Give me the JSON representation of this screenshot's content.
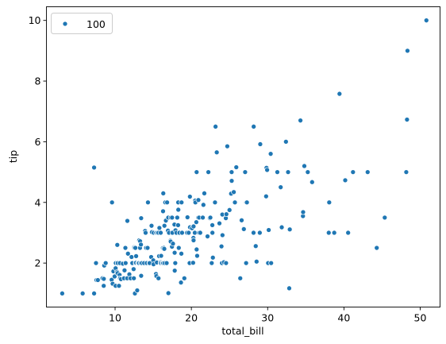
{
  "chart_data": {
    "type": "scatter",
    "xlabel": "total_bill",
    "ylabel": "tip",
    "xlim": [
      1.0,
      52.6
    ],
    "ylim": [
      0.55,
      10.45
    ],
    "xticks": [
      10,
      20,
      30,
      40,
      50
    ],
    "yticks": [
      2,
      4,
      6,
      8,
      10
    ],
    "grid": false,
    "legend_position": "top-left",
    "series": [
      {
        "name": "100",
        "color": "#1f77b4",
        "points": [
          [
            3.07,
            1.0
          ],
          [
            5.75,
            1.0
          ],
          [
            7.25,
            1.0
          ],
          [
            7.25,
            5.15
          ],
          [
            7.5,
            2.0
          ],
          [
            7.56,
            1.44
          ],
          [
            7.74,
            1.44
          ],
          [
            8.35,
            1.5
          ],
          [
            8.51,
            1.25
          ],
          [
            8.52,
            1.48
          ],
          [
            8.58,
            1.92
          ],
          [
            8.77,
            2.0
          ],
          [
            9.55,
            1.45
          ],
          [
            9.6,
            4.0
          ],
          [
            9.68,
            1.32
          ],
          [
            9.78,
            1.73
          ],
          [
            9.94,
            1.56
          ],
          [
            10.07,
            1.25
          ],
          [
            10.07,
            1.83
          ],
          [
            10.09,
            2.0
          ],
          [
            10.27,
            1.71
          ],
          [
            10.29,
            2.6
          ],
          [
            10.33,
            1.67
          ],
          [
            10.33,
            2.0
          ],
          [
            10.34,
            2.0
          ],
          [
            10.51,
            1.25
          ],
          [
            10.59,
            1.61
          ],
          [
            10.63,
            2.0
          ],
          [
            10.65,
            1.5
          ],
          [
            10.77,
            1.47
          ],
          [
            11.02,
            1.98
          ],
          [
            11.17,
            1.5
          ],
          [
            11.24,
            1.76
          ],
          [
            11.35,
            2.5
          ],
          [
            11.38,
            2.0
          ],
          [
            11.59,
            1.5
          ],
          [
            11.61,
            3.39
          ],
          [
            11.69,
            2.31
          ],
          [
            11.87,
            1.63
          ],
          [
            12.03,
            1.5
          ],
          [
            12.16,
            2.2
          ],
          [
            12.26,
            2.0
          ],
          [
            12.43,
            1.8
          ],
          [
            12.46,
            1.5
          ],
          [
            12.48,
            2.52
          ],
          [
            12.54,
            2.5
          ],
          [
            12.6,
            1.0
          ],
          [
            12.66,
            2.5
          ],
          [
            12.69,
            2.0
          ],
          [
            12.74,
            2.01
          ],
          [
            12.76,
            2.23
          ],
          [
            12.9,
            1.1
          ],
          [
            13.0,
            2.0
          ],
          [
            13.03,
            2.0
          ],
          [
            13.13,
            2.0
          ],
          [
            13.16,
            2.75
          ],
          [
            13.27,
            2.5
          ],
          [
            13.28,
            2.72
          ],
          [
            13.37,
            2.0
          ],
          [
            13.39,
            2.61
          ],
          [
            13.42,
            1.58
          ],
          [
            13.42,
            3.48
          ],
          [
            13.51,
            2.0
          ],
          [
            13.81,
            2.0
          ],
          [
            13.94,
            3.06
          ],
          [
            14.0,
            3.0
          ],
          [
            14.07,
            2.5
          ],
          [
            14.15,
            2.0
          ],
          [
            14.26,
            2.5
          ],
          [
            14.31,
            4.0
          ],
          [
            14.48,
            2.0
          ],
          [
            14.52,
            2.0
          ],
          [
            14.73,
            2.2
          ],
          [
            14.78,
            3.23
          ],
          [
            14.83,
            3.02
          ],
          [
            15.01,
            2.09
          ],
          [
            15.04,
            1.96
          ],
          [
            15.06,
            3.0
          ],
          [
            15.36,
            1.64
          ],
          [
            15.38,
            3.0
          ],
          [
            15.42,
            1.57
          ],
          [
            15.48,
            2.02
          ],
          [
            15.53,
            3.0
          ],
          [
            15.69,
            1.5
          ],
          [
            15.69,
            3.0
          ],
          [
            15.77,
            2.23
          ],
          [
            15.81,
            3.16
          ],
          [
            15.95,
            2.0
          ],
          [
            15.98,
            2.03
          ],
          [
            15.98,
            3.0
          ],
          [
            16.0,
            2.0
          ],
          [
            16.04,
            2.24
          ],
          [
            16.21,
            2.0
          ],
          [
            16.27,
            2.5
          ],
          [
            16.29,
            3.71
          ],
          [
            16.31,
            2.0
          ],
          [
            16.32,
            4.3
          ],
          [
            16.4,
            2.5
          ],
          [
            16.45,
            2.47
          ],
          [
            16.47,
            3.23
          ],
          [
            16.49,
            2.0
          ],
          [
            16.58,
            4.0
          ],
          [
            16.66,
            3.4
          ],
          [
            16.76,
            2.0
          ],
          [
            16.82,
            4.0
          ],
          [
            16.93,
            3.07
          ],
          [
            16.97,
            3.5
          ],
          [
            16.99,
            1.01
          ],
          [
            17.07,
            3.0
          ],
          [
            17.26,
            2.74
          ],
          [
            17.29,
            2.71
          ],
          [
            17.31,
            3.5
          ],
          [
            17.46,
            2.54
          ],
          [
            17.47,
            3.5
          ],
          [
            17.51,
            3.0
          ],
          [
            17.59,
            2.64
          ],
          [
            17.78,
            3.27
          ],
          [
            17.81,
            2.34
          ],
          [
            17.82,
            1.75
          ],
          [
            17.89,
            2.0
          ],
          [
            17.92,
            3.08
          ],
          [
            18.04,
            3.0
          ],
          [
            18.15,
            3.5
          ],
          [
            18.24,
            3.76
          ],
          [
            18.26,
            3.25
          ],
          [
            18.28,
            4.0
          ],
          [
            18.29,
            3.76
          ],
          [
            18.35,
            2.5
          ],
          [
            18.43,
            3.0
          ],
          [
            18.64,
            1.36
          ],
          [
            18.69,
            2.31
          ],
          [
            18.71,
            4.0
          ],
          [
            18.78,
            3.0
          ],
          [
            19.08,
            1.5
          ],
          [
            19.44,
            3.0
          ],
          [
            19.49,
            3.51
          ],
          [
            19.65,
            3.0
          ],
          [
            19.77,
            2.0
          ],
          [
            19.81,
            4.19
          ],
          [
            19.82,
            3.18
          ],
          [
            20.08,
            3.15
          ],
          [
            20.23,
            2.01
          ],
          [
            20.27,
            2.83
          ],
          [
            20.29,
            2.75
          ],
          [
            20.29,
            3.21
          ],
          [
            20.45,
            3.0
          ],
          [
            20.49,
            4.06
          ],
          [
            20.53,
            4.0
          ],
          [
            20.65,
            3.35
          ],
          [
            20.69,
            2.45
          ],
          [
            20.69,
            5.0
          ],
          [
            20.76,
            2.24
          ],
          [
            20.9,
            3.5
          ],
          [
            20.92,
            4.08
          ],
          [
            21.01,
            3.5
          ],
          [
            21.01,
            3.0
          ],
          [
            21.16,
            3.0
          ],
          [
            21.5,
            3.5
          ],
          [
            21.58,
            3.92
          ],
          [
            21.7,
            4.3
          ],
          [
            22.12,
            2.88
          ],
          [
            22.23,
            5.0
          ],
          [
            22.42,
            3.48
          ],
          [
            22.49,
            3.5
          ],
          [
            22.67,
            2.0
          ],
          [
            22.75,
            3.25
          ],
          [
            22.76,
            3.0
          ],
          [
            22.82,
            2.18
          ],
          [
            23.1,
            4.0
          ],
          [
            23.17,
            6.5
          ],
          [
            23.33,
            5.65
          ],
          [
            23.68,
            3.31
          ],
          [
            23.95,
            2.55
          ],
          [
            24.01,
            2.0
          ],
          [
            24.06,
            3.6
          ],
          [
            24.08,
            2.92
          ],
          [
            24.27,
            2.03
          ],
          [
            24.52,
            3.48
          ],
          [
            24.55,
            2.0
          ],
          [
            24.59,
            3.61
          ],
          [
            24.71,
            5.85
          ],
          [
            25.0,
            3.75
          ],
          [
            25.21,
            4.29
          ],
          [
            25.28,
            5.0
          ],
          [
            25.29,
            4.71
          ],
          [
            25.56,
            4.34
          ],
          [
            25.71,
            4.0
          ],
          [
            25.89,
            5.16
          ],
          [
            26.41,
            1.5
          ],
          [
            26.59,
            3.41
          ],
          [
            26.86,
            3.14
          ],
          [
            26.88,
            3.12
          ],
          [
            27.05,
            5.0
          ],
          [
            27.18,
            2.0
          ],
          [
            27.2,
            4.0
          ],
          [
            27.28,
            4.0
          ],
          [
            28.15,
            3.0
          ],
          [
            28.17,
            6.5
          ],
          [
            28.44,
            2.56
          ],
          [
            28.55,
            2.05
          ],
          [
            28.97,
            3.0
          ],
          [
            29.03,
            5.92
          ],
          [
            29.8,
            4.2
          ],
          [
            29.85,
            5.14
          ],
          [
            29.93,
            5.07
          ],
          [
            30.06,
            2.0
          ],
          [
            30.14,
            3.09
          ],
          [
            30.4,
            5.6
          ],
          [
            30.46,
            2.0
          ],
          [
            31.27,
            5.0
          ],
          [
            31.71,
            4.5
          ],
          [
            31.85,
            3.18
          ],
          [
            32.4,
            6.0
          ],
          [
            32.68,
            5.0
          ],
          [
            32.83,
            1.17
          ],
          [
            32.9,
            3.11
          ],
          [
            34.3,
            6.7
          ],
          [
            34.63,
            3.55
          ],
          [
            34.65,
            3.68
          ],
          [
            34.81,
            5.2
          ],
          [
            35.26,
            5.0
          ],
          [
            35.83,
            4.67
          ],
          [
            38.01,
            3.0
          ],
          [
            38.07,
            4.0
          ],
          [
            38.73,
            3.0
          ],
          [
            39.42,
            7.58
          ],
          [
            40.17,
            4.73
          ],
          [
            40.55,
            3.0
          ],
          [
            41.19,
            5.0
          ],
          [
            43.11,
            5.0
          ],
          [
            44.3,
            2.5
          ],
          [
            45.35,
            3.5
          ],
          [
            48.17,
            5.0
          ],
          [
            48.27,
            6.73
          ],
          [
            48.33,
            9.0
          ],
          [
            50.81,
            10.0
          ]
        ]
      }
    ]
  }
}
